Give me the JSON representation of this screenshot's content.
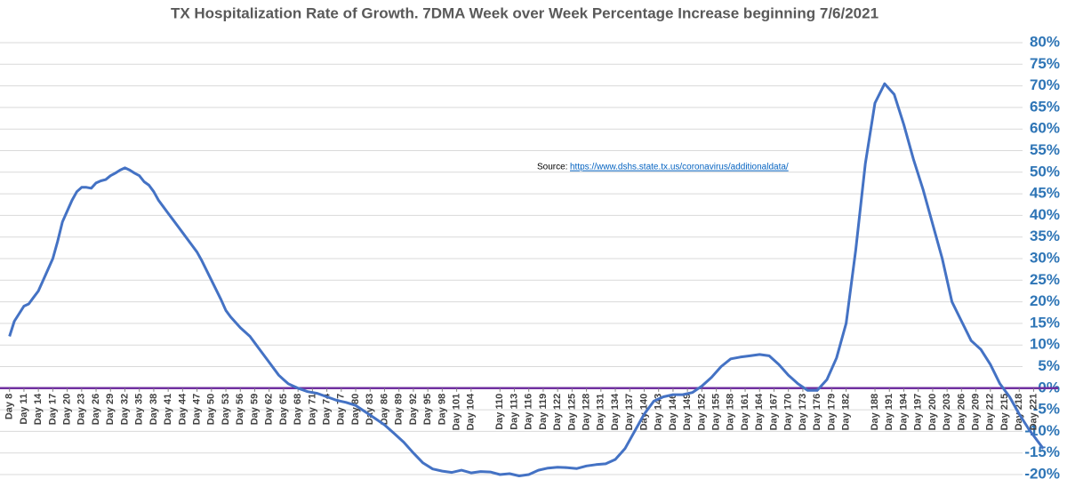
{
  "chart_data": {
    "type": "line",
    "title": "TX Hospitalization Rate of Growth.   7DMA Week over Week Percentage Increase beginning 7/6/2021",
    "annotation": {
      "label": "Source:",
      "link": "https://www.dshs.state.tx.us/coronavirus/additionaldata/"
    },
    "x": [
      8,
      9,
      11,
      12,
      13,
      14,
      15,
      16,
      17,
      18,
      19,
      20,
      21,
      22,
      23,
      24,
      25,
      26,
      27,
      28,
      29,
      30,
      31,
      32,
      33,
      34,
      35,
      36,
      37,
      38,
      39,
      40,
      41,
      42,
      44,
      46,
      47,
      48,
      50,
      52,
      53,
      54,
      56,
      58,
      59,
      60,
      62,
      64,
      65,
      66,
      67,
      68,
      70,
      72,
      74,
      76,
      78,
      80,
      82,
      84,
      86,
      88,
      90,
      92,
      94,
      96,
      98,
      100,
      102,
      104,
      106,
      108,
      110,
      112,
      114,
      116,
      118,
      120,
      122,
      124,
      126,
      128,
      130,
      132,
      134,
      136,
      138,
      140,
      142,
      144,
      146,
      148,
      150,
      152,
      154,
      156,
      158,
      160,
      162,
      164,
      166,
      168,
      170,
      172,
      174,
      176,
      178,
      180,
      182,
      184,
      186,
      188,
      190,
      192,
      194,
      196,
      198,
      200,
      202,
      204,
      206,
      208,
      210,
      212,
      214,
      216,
      218,
      220,
      222,
      223
    ],
    "series": [
      {
        "name": "7DMA WoW % increase",
        "color": "#4472c4",
        "values": [
          12,
          15.5,
          19,
          19.5,
          21,
          22.5,
          25,
          27.5,
          30,
          34,
          38.5,
          41,
          43.5,
          45.5,
          46.5,
          46.5,
          46.3,
          47.5,
          48,
          48.3,
          49.2,
          49.8,
          50.5,
          51,
          50.5,
          49.8,
          49.2,
          47.8,
          47,
          45.5,
          43.5,
          42,
          40.5,
          39,
          36,
          33,
          31.5,
          29.5,
          25,
          20.5,
          18,
          16.5,
          14,
          12,
          10.5,
          9,
          6,
          3,
          2,
          1,
          0.5,
          0,
          -0.8,
          -1.2,
          -2,
          -2.8,
          -3.3,
          -4,
          -5.5,
          -7,
          -8.5,
          -10.5,
          -12.5,
          -15,
          -17.3,
          -18.7,
          -19.2,
          -19.5,
          -19,
          -19.6,
          -19.3,
          -19.4,
          -20,
          -19.8,
          -20.3,
          -20,
          -19,
          -18.5,
          -18.3,
          -18.4,
          -18.6,
          -18,
          -17.7,
          -17.5,
          -16.5,
          -14,
          -10,
          -6,
          -3,
          -2,
          -1.5,
          -1.5,
          -1,
          0.5,
          2.5,
          5,
          6.8,
          7.2,
          7.5,
          7.8,
          7.5,
          5.5,
          3,
          1,
          -0.5,
          -0.5,
          2,
          7,
          15,
          32,
          52,
          66,
          70.5,
          68,
          61,
          53,
          46,
          38,
          30,
          20,
          15.5,
          11,
          9,
          5.5,
          1,
          -2,
          -6,
          -9.5,
          -12.5,
          -14
        ]
      }
    ],
    "xlim": [
      7.5,
      223.5
    ],
    "xticks": [
      {
        "value": 8,
        "label": "Day 8"
      },
      {
        "value": 11,
        "label": "Day 11"
      },
      {
        "value": 14,
        "label": "Day 14"
      },
      {
        "value": 17,
        "label": "Day 17"
      },
      {
        "value": 20,
        "label": "Day 20"
      },
      {
        "value": 23,
        "label": "Day 23"
      },
      {
        "value": 26,
        "label": "Day 26"
      },
      {
        "value": 29,
        "label": "Day 29"
      },
      {
        "value": 32,
        "label": "Day 32"
      },
      {
        "value": 35,
        "label": "Day 35"
      },
      {
        "value": 38,
        "label": "Day 38"
      },
      {
        "value": 41,
        "label": "Day 41"
      },
      {
        "value": 44,
        "label": "Day 44"
      },
      {
        "value": 47,
        "label": "Day 47"
      },
      {
        "value": 50,
        "label": "Day 50"
      },
      {
        "value": 53,
        "label": "Day 53"
      },
      {
        "value": 56,
        "label": "Day 56"
      },
      {
        "value": 59,
        "label": "Day 59"
      },
      {
        "value": 62,
        "label": "Day 62"
      },
      {
        "value": 65,
        "label": "Day 65"
      },
      {
        "value": 68,
        "label": "Day 68"
      },
      {
        "value": 71,
        "label": "Day 71"
      },
      {
        "value": 74,
        "label": "Day 74"
      },
      {
        "value": 77,
        "label": "Day 77"
      },
      {
        "value": 80,
        "label": "Day 80"
      },
      {
        "value": 83,
        "label": "Day 83"
      },
      {
        "value": 86,
        "label": "Day 86"
      },
      {
        "value": 89,
        "label": "Day 89"
      },
      {
        "value": 92,
        "label": "Day 92"
      },
      {
        "value": 95,
        "label": "Day 95"
      },
      {
        "value": 98,
        "label": "Day 98"
      },
      {
        "value": 101,
        "label": "Day 101"
      },
      {
        "value": 104,
        "label": "Day 104"
      },
      {
        "value": 110,
        "label": "Day 110"
      },
      {
        "value": 113,
        "label": "Day 113"
      },
      {
        "value": 116,
        "label": "Day 116"
      },
      {
        "value": 119,
        "label": "Day 119"
      },
      {
        "value": 122,
        "label": "Day 122"
      },
      {
        "value": 125,
        "label": "Day 125"
      },
      {
        "value": 128,
        "label": "Day 128"
      },
      {
        "value": 131,
        "label": "Day 131"
      },
      {
        "value": 134,
        "label": "Day 134"
      },
      {
        "value": 137,
        "label": "Day 137"
      },
      {
        "value": 140,
        "label": "Day 140"
      },
      {
        "value": 143,
        "label": "Day 143"
      },
      {
        "value": 146,
        "label": "Day 146"
      },
      {
        "value": 149,
        "label": "Day 149"
      },
      {
        "value": 152,
        "label": "Day 152"
      },
      {
        "value": 155,
        "label": "Day 155"
      },
      {
        "value": 158,
        "label": "Day 158"
      },
      {
        "value": 161,
        "label": "Day 161"
      },
      {
        "value": 164,
        "label": "Day 164"
      },
      {
        "value": 167,
        "label": "Day 167"
      },
      {
        "value": 170,
        "label": "Day 170"
      },
      {
        "value": 173,
        "label": "Day 173"
      },
      {
        "value": 176,
        "label": "Day 176"
      },
      {
        "value": 179,
        "label": "Day 179"
      },
      {
        "value": 182,
        "label": "Day 182"
      },
      {
        "value": 188,
        "label": "Day 188"
      },
      {
        "value": 191,
        "label": "Day 191"
      },
      {
        "value": 194,
        "label": "Day 194"
      },
      {
        "value": 197,
        "label": "Day 197"
      },
      {
        "value": 200,
        "label": "Day 200"
      },
      {
        "value": 203,
        "label": "Day 203"
      },
      {
        "value": 206,
        "label": "Day 206"
      },
      {
        "value": 209,
        "label": "Day 209"
      },
      {
        "value": 212,
        "label": "Day 212"
      },
      {
        "value": 215,
        "label": "Day 215"
      },
      {
        "value": 218,
        "label": "Day 218"
      },
      {
        "value": 221,
        "label": "Day 221"
      }
    ],
    "ylim": [
      -20,
      80
    ],
    "yticks": [
      {
        "value": -20,
        "label": "-20%"
      },
      {
        "value": -15,
        "label": "-15%"
      },
      {
        "value": -10,
        "label": "-10%"
      },
      {
        "value": -5,
        "label": "-5%"
      },
      {
        "value": 0,
        "label": "0%"
      },
      {
        "value": 5,
        "label": "5%"
      },
      {
        "value": 10,
        "label": "10%"
      },
      {
        "value": 15,
        "label": "15%"
      },
      {
        "value": 20,
        "label": "20%"
      },
      {
        "value": 25,
        "label": "25%"
      },
      {
        "value": 30,
        "label": "30%"
      },
      {
        "value": 35,
        "label": "35%"
      },
      {
        "value": 40,
        "label": "40%"
      },
      {
        "value": 45,
        "label": "45%"
      },
      {
        "value": 50,
        "label": "50%"
      },
      {
        "value": 55,
        "label": "55%"
      },
      {
        "value": 60,
        "label": "60%"
      },
      {
        "value": 65,
        "label": "65%"
      },
      {
        "value": 70,
        "label": "70%"
      },
      {
        "value": 75,
        "label": "75%"
      },
      {
        "value": 80,
        "label": "80%"
      }
    ],
    "grid": true,
    "zero_line_color": "#7030a0"
  }
}
